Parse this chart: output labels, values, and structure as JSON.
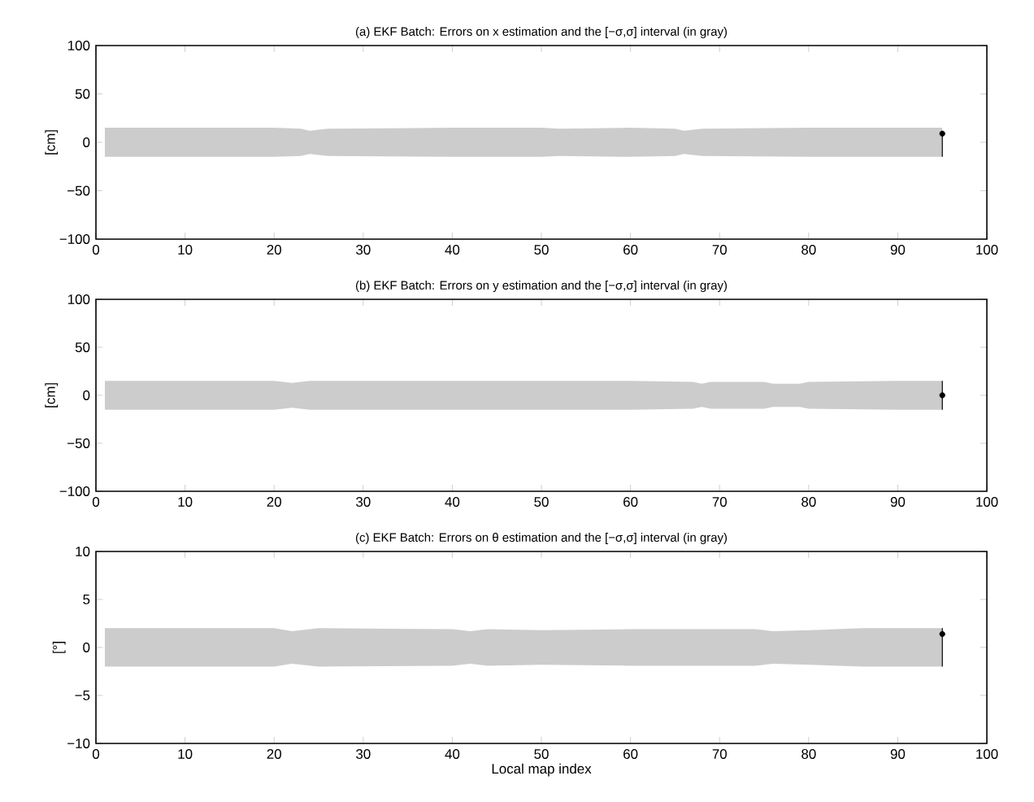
{
  "chart_data": [
    {
      "type": "line",
      "title": "(a) EKF Batch: Errors on x estimation and the [−σ,σ] interval (in gray)",
      "ylabel": "[cm]",
      "xlim": [
        0,
        100
      ],
      "ylim": [
        -100,
        100
      ],
      "xticks": [
        0,
        10,
        20,
        30,
        40,
        50,
        60,
        70,
        80,
        90,
        100
      ],
      "yticks": [
        {
          "value": -100,
          "label": "−100"
        },
        {
          "value": -50,
          "label": "−50"
        },
        0,
        50,
        100
      ],
      "marker": "circle",
      "series": [
        {
          "color": "#000000",
          "x": [
            1,
            10,
            20,
            23,
            24,
            26,
            40,
            50,
            52,
            60,
            65,
            66,
            68,
            80,
            90,
            95
          ],
          "values": [
            null,
            null,
            null,
            null,
            null,
            null,
            null,
            null,
            null,
            null,
            null,
            null,
            null,
            null,
            null,
            9
          ],
          "errors": [
            null,
            null,
            null,
            null,
            null,
            null,
            null,
            null,
            null,
            null,
            null,
            null,
            null,
            null,
            null,
            [
              -15,
              9
            ]
          ],
          "lower": [
            -15,
            -15,
            -15,
            -14,
            -12,
            -14,
            -15,
            -15,
            -14,
            -15,
            -14,
            -12,
            -14,
            -15,
            -15,
            -15
          ],
          "upper": [
            15,
            15,
            15,
            14,
            12,
            14,
            15,
            15,
            14,
            15,
            14,
            12,
            14,
            15,
            15,
            15
          ]
        }
      ]
    },
    {
      "type": "line",
      "title": "(b) EKF Batch: Errors on y estimation and the [−σ,σ] interval (in gray)",
      "ylabel": "[cm]",
      "xlim": [
        0,
        100
      ],
      "ylim": [
        -100,
        100
      ],
      "xticks": [
        0,
        10,
        20,
        30,
        40,
        50,
        60,
        70,
        80,
        90,
        100
      ],
      "yticks": [
        {
          "value": -100,
          "label": "−100"
        },
        {
          "value": -50,
          "label": "−50"
        },
        0,
        50,
        100
      ],
      "marker": "circle",
      "series": [
        {
          "color": "#000000",
          "x": [
            1,
            10,
            20,
            22,
            24,
            40,
            60,
            67,
            68,
            69,
            75,
            76,
            79,
            80,
            90,
            95
          ],
          "values": [
            null,
            null,
            null,
            null,
            null,
            null,
            null,
            null,
            null,
            null,
            null,
            null,
            null,
            null,
            null,
            0
          ],
          "errors": [
            null,
            null,
            null,
            null,
            null,
            null,
            null,
            null,
            null,
            null,
            null,
            null,
            null,
            null,
            null,
            [
              -15,
              15
            ]
          ],
          "lower": [
            -15,
            -15,
            -15,
            -13,
            -15,
            -15,
            -15,
            -14,
            -12,
            -14,
            -14,
            -12,
            -12,
            -14,
            -15,
            -15
          ],
          "upper": [
            15,
            15,
            15,
            13,
            15,
            15,
            15,
            14,
            12,
            14,
            14,
            12,
            12,
            14,
            15,
            15
          ]
        }
      ]
    },
    {
      "type": "line",
      "title": "(c) EKF Batch: Errors on θ estimation and the [−σ,σ] interval (in gray)",
      "xlabel": "Local map index",
      "ylabel": "[°]",
      "xlim": [
        0,
        100
      ],
      "ylim": [
        -10,
        10
      ],
      "xticks": [
        0,
        10,
        20,
        30,
        40,
        50,
        60,
        70,
        80,
        90,
        100
      ],
      "yticks": [
        {
          "value": -10,
          "label": "−10"
        },
        {
          "value": -5,
          "label": "−5"
        },
        0,
        5,
        10
      ],
      "marker": "circle",
      "series": [
        {
          "color": "#000000",
          "x": [
            1,
            10,
            20,
            22,
            25,
            40,
            42,
            44,
            50,
            60,
            74,
            76,
            80,
            86,
            90,
            95
          ],
          "values": [
            null,
            null,
            null,
            null,
            null,
            null,
            null,
            null,
            null,
            null,
            null,
            null,
            null,
            null,
            null,
            1.4
          ],
          "errors": [
            null,
            null,
            null,
            null,
            null,
            null,
            null,
            null,
            null,
            null,
            null,
            null,
            null,
            null,
            null,
            [
              -2,
              2
            ]
          ],
          "lower": [
            -2,
            -2,
            -2,
            -1.7,
            -2,
            -1.9,
            -1.7,
            -1.9,
            -1.8,
            -1.9,
            -1.9,
            -1.7,
            -1.8,
            -2,
            -2,
            -2
          ],
          "upper": [
            2,
            2,
            2,
            1.7,
            2,
            1.9,
            1.7,
            1.9,
            1.8,
            1.9,
            1.9,
            1.7,
            1.8,
            2,
            2,
            2
          ]
        }
      ]
    }
  ]
}
